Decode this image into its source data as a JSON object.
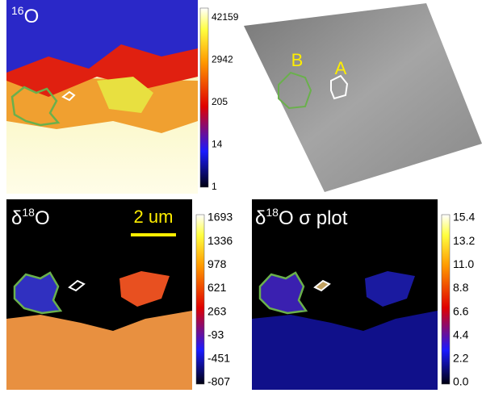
{
  "panels": [
    {
      "title": {
        "sup": "16",
        "main": "O"
      },
      "colorbar": {
        "labels": [
          "42159",
          "2942",
          "205",
          "14",
          "1"
        ]
      }
    },
    {
      "labels": {
        "b": "B",
        "a": "A"
      }
    },
    {
      "title": {
        "pre": "δ",
        "sup": "18",
        "main": "O"
      },
      "scale_bar": "2 um",
      "colorbar": {
        "labels": [
          "1693",
          "1336",
          "978",
          "621",
          "263",
          "-93",
          "-451",
          "-807"
        ]
      }
    },
    {
      "title": {
        "pre": "δ",
        "sup": "18",
        "main": "O σ plot"
      },
      "colorbar": {
        "labels": [
          "15.4",
          "13.2",
          "11.0",
          "8.8",
          "6.6",
          "4.4",
          "2.2",
          "0.0"
        ]
      }
    }
  ]
}
